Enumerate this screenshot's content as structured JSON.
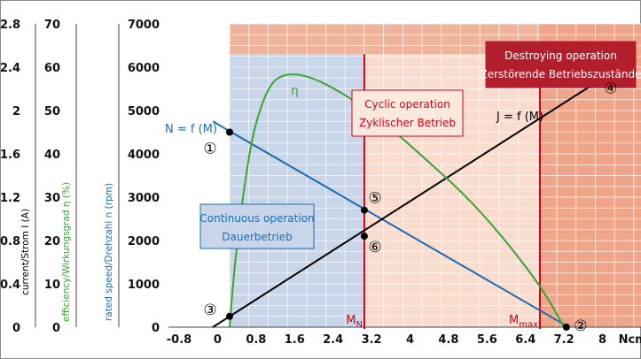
{
  "chart_data": {
    "type": "line",
    "x_axis": {
      "range": [
        -0.8,
        8.8
      ],
      "ticks": [
        -0.8,
        0,
        0.8,
        1.6,
        2.4,
        3.2,
        4,
        4.8,
        5.6,
        6.4,
        7.2,
        8
      ],
      "tick_labels": [
        "-0.8",
        "0",
        "0.8",
        "1.6",
        "2.4",
        "3.2",
        "4",
        "4.8",
        "5.6",
        "6.4",
        "7.2",
        "8"
      ],
      "unit": "Ncm"
    },
    "y_axes": [
      {
        "label": "rated speed/Drehzahl n (rpm)",
        "range": [
          0,
          7000
        ],
        "ticks": [
          0,
          1000,
          2000,
          3000,
          4000,
          5000,
          6000,
          7000
        ],
        "tick_labels": [
          "0",
          "1000",
          "2000",
          "3000",
          "4000",
          "5000",
          "6000",
          "7000"
        ],
        "color": "#1d6cb0"
      },
      {
        "label": "efficiency/Wirkungsgrad η (%)",
        "range": [
          0,
          70
        ],
        "ticks": [
          0,
          10,
          20,
          30,
          40,
          50,
          60,
          70
        ],
        "tick_labels": [
          "0",
          "10",
          "20",
          "30",
          "40",
          "50",
          "60",
          "70"
        ],
        "color": "#3aa335"
      },
      {
        "label": "current/Strom I (A)",
        "range": [
          0,
          2.8
        ],
        "ticks": [
          0,
          0.4,
          0.8,
          1.2,
          1.6,
          2,
          2.4,
          2.8
        ],
        "tick_labels": [
          "0",
          "0.4",
          "0.8",
          "1.2",
          "1.6",
          "2",
          "2.4",
          "2.8"
        ],
        "color": "#000000"
      }
    ],
    "series": [
      {
        "name": "N = f (M)",
        "color": "#1d6cb0",
        "x": [
          -0.1,
          7.3
        ],
        "y": [
          4750,
          0
        ]
      },
      {
        "name": "J = f (M)",
        "color": "#000000",
        "x": [
          -0.1,
          7.8
        ],
        "y": [
          0,
          5600
        ]
      },
      {
        "name": "η",
        "color": "#3aa335",
        "x": [
          0.25,
          0.35,
          0.5,
          0.7,
          0.9,
          1.1,
          1.3,
          1.6,
          2.0,
          2.6,
          3.2,
          3.8,
          4.4,
          5.0,
          5.6,
          6.2,
          6.8,
          7.2
        ],
        "y": [
          0,
          14,
          28,
          43,
          51,
          56,
          58,
          58.5,
          57.5,
          54,
          49.5,
          44,
          38,
          32,
          25,
          17,
          8,
          0
        ]
      }
    ],
    "regions": [
      {
        "label": "Continuous operation",
        "label2": "Dauerbetrieb",
        "x": [
          0.25,
          3.05
        ],
        "y_top": 6300,
        "color": "#c9d6ea"
      },
      {
        "label": "Cyclic operation",
        "label2": "Zyklischer Betrieb",
        "x": [
          3.05,
          6.7
        ],
        "y_top": 6300,
        "color": "#f9dccd"
      },
      {
        "label": "Destroying operation",
        "label2": "Zerstörende Betriebszustände",
        "x": [
          6.7,
          8.8
        ],
        "y_top": 7000,
        "color": "#eea58a"
      }
    ],
    "markers": [
      {
        "label": "M",
        "sub": "N",
        "x": 3.05
      },
      {
        "label": "M",
        "sub": "max",
        "x": 6.7
      }
    ],
    "points": [
      {
        "label": "①",
        "x": 0.25,
        "y": 4500
      },
      {
        "label": "②",
        "x": 7.25,
        "y": 0
      },
      {
        "label": "③",
        "x": 0.25,
        "y": 250
      },
      {
        "label": "④",
        "x": 7.8,
        "y": 5600
      },
      {
        "label": "⑤",
        "x": 3.05,
        "y": 2700
      },
      {
        "label": "⑥",
        "x": 3.05,
        "y": 2100
      }
    ],
    "grid": true,
    "colors": {
      "grid": "#ffffff",
      "marker": "#d0021b",
      "frame": "#8a8a8a"
    }
  }
}
